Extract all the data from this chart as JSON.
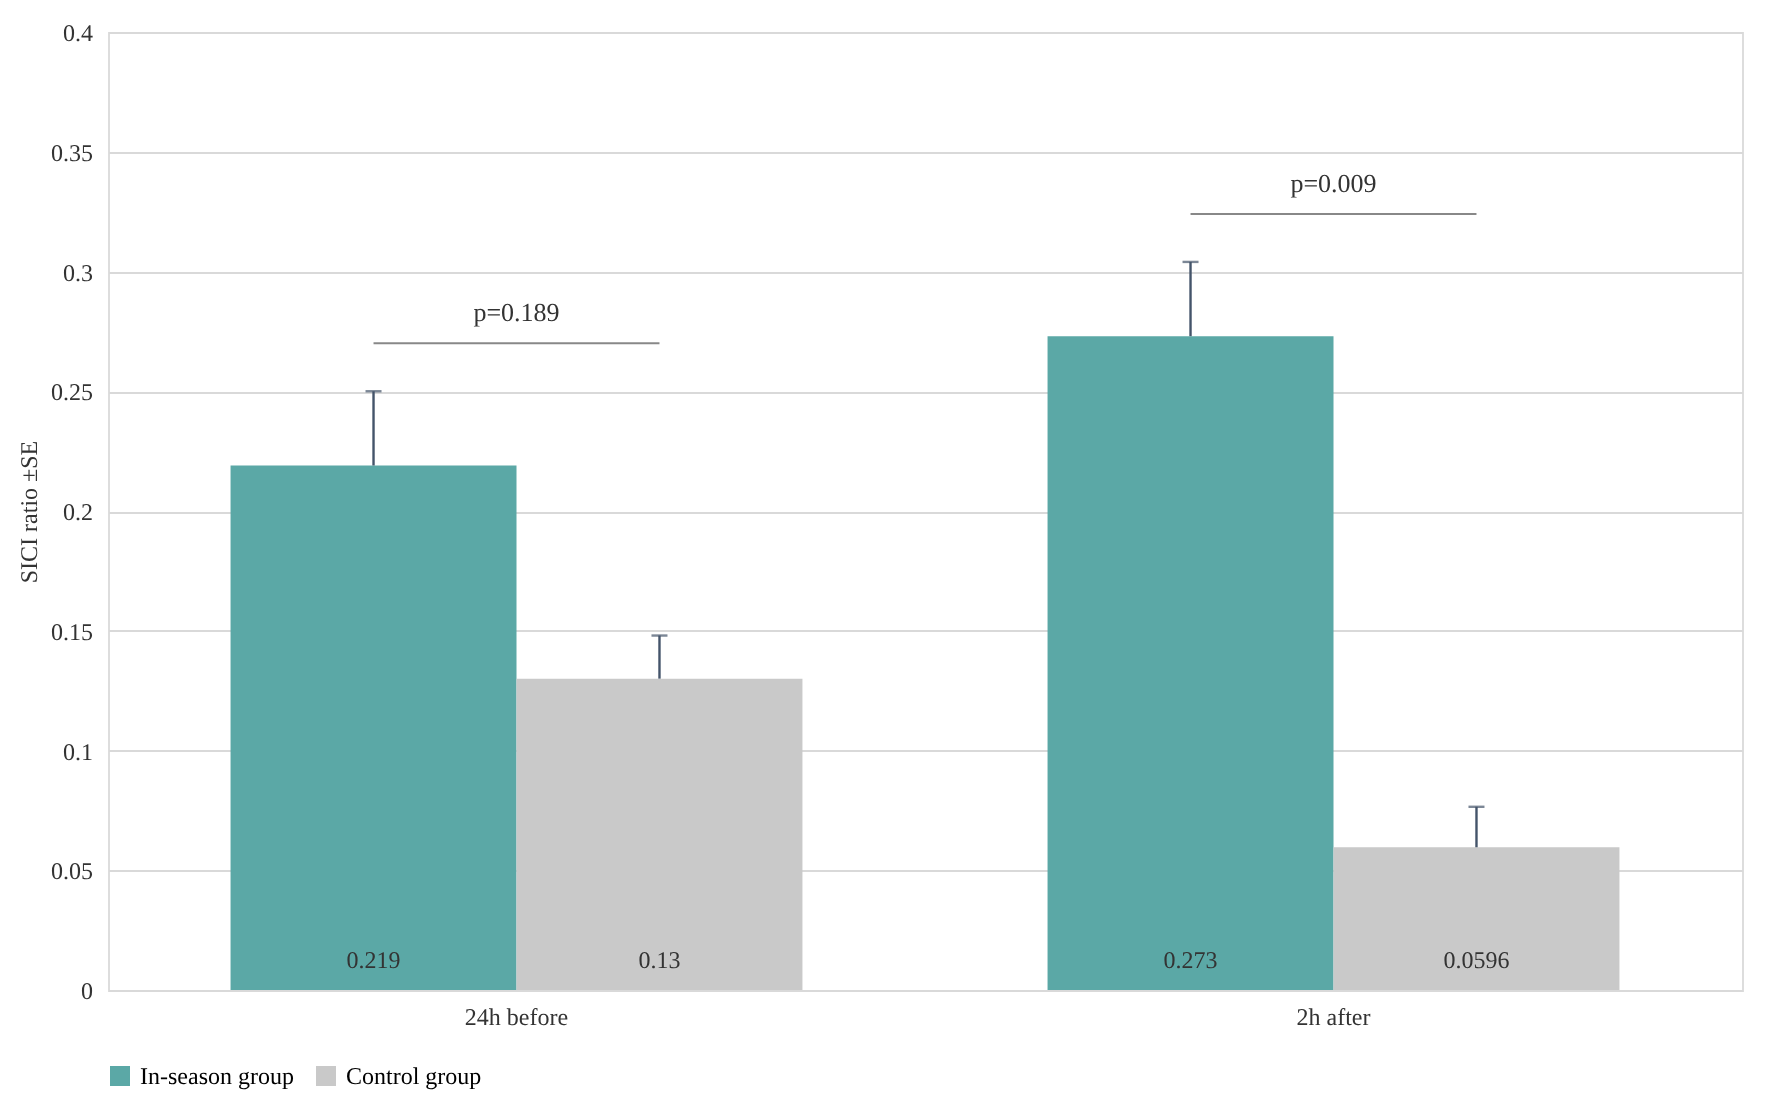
{
  "chart_data": {
    "type": "bar",
    "ylabel": "SICI ratio ±SE",
    "categories": [
      "24h before",
      "2h after"
    ],
    "series": [
      {
        "name": "In-season group",
        "color": "#5ba8a6",
        "values": [
          0.219,
          0.273
        ],
        "errors": [
          [
            0.219,
            0.25
          ],
          [
            0.273,
            0.304
          ]
        ]
      },
      {
        "name": "Control group",
        "color": "#c9c9c9",
        "values": [
          0.13,
          0.0596
        ],
        "errors": [
          [
            0.13,
            0.148
          ],
          [
            0.0596,
            0.0765
          ]
        ]
      }
    ],
    "ylim": [
      0,
      0.4
    ],
    "yticks": [
      0,
      0.05,
      0.1,
      0.15,
      0.2,
      0.25,
      0.3,
      0.35,
      0.4
    ],
    "annotations": [
      "p=0.189",
      "p=0.009"
    ],
    "data_labels": true,
    "grid": "y",
    "legend": "bottom"
  }
}
